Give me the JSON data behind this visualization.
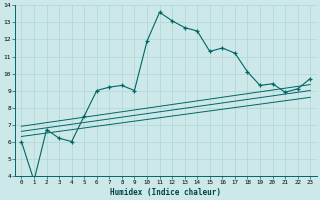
{
  "xlabel": "Humidex (Indice chaleur)",
  "bg_color": "#cce8e8",
  "grid_color": "#b0d4d4",
  "line_color": "#006666",
  "xlim": [
    -0.5,
    23.5
  ],
  "ylim": [
    4,
    14
  ],
  "xticks": [
    0,
    1,
    2,
    3,
    4,
    5,
    6,
    7,
    8,
    9,
    10,
    11,
    12,
    13,
    14,
    15,
    16,
    17,
    18,
    19,
    20,
    21,
    22,
    23
  ],
  "yticks": [
    4,
    5,
    6,
    7,
    8,
    9,
    10,
    11,
    12,
    13,
    14
  ],
  "main_x": [
    0,
    1,
    2,
    3,
    4,
    5,
    6,
    7,
    8,
    9,
    10,
    11,
    12,
    13,
    14,
    15,
    16,
    17,
    18,
    19,
    20,
    21,
    22,
    23
  ],
  "main_y": [
    6.0,
    3.7,
    6.7,
    6.2,
    6.0,
    7.5,
    9.0,
    9.2,
    9.3,
    9.0,
    11.9,
    13.6,
    13.1,
    12.7,
    12.5,
    11.3,
    11.5,
    11.2,
    10.1,
    9.3,
    9.4,
    8.9,
    9.1,
    9.7
  ],
  "reg_lines": [
    {
      "x": [
        0,
        23
      ],
      "y": [
        6.3,
        8.6
      ]
    },
    {
      "x": [
        0,
        23
      ],
      "y": [
        6.6,
        9.0
      ]
    },
    {
      "x": [
        0,
        23
      ],
      "y": [
        6.9,
        9.35
      ]
    }
  ]
}
